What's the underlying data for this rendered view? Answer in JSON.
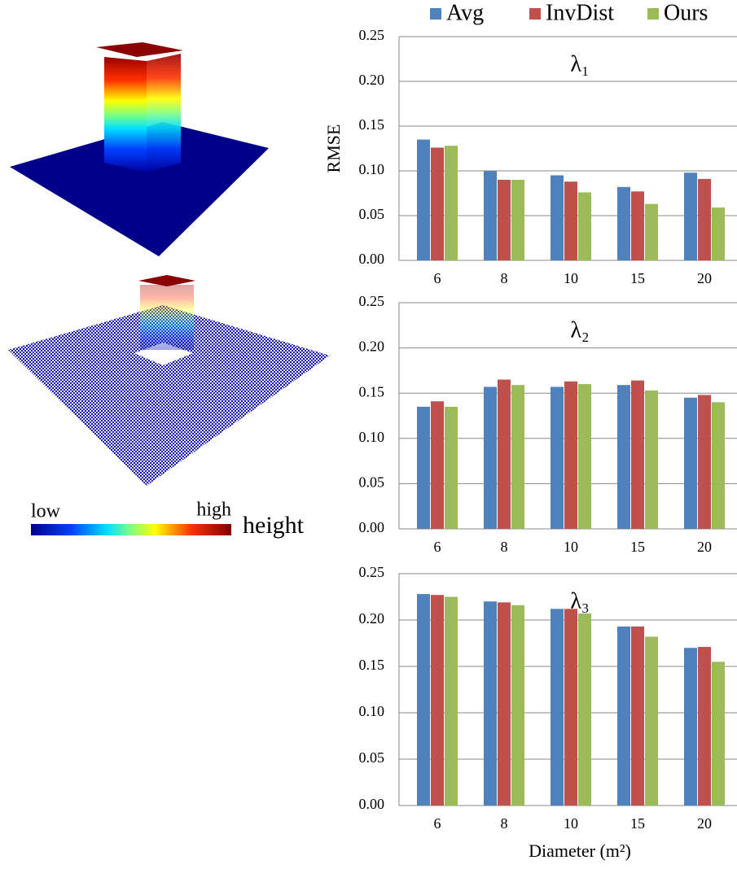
{
  "chart_data": [
    {
      "type": "bar",
      "title": "λ₁",
      "y_label": "RMSE",
      "categories": [
        "6",
        "8",
        "10",
        "15",
        "20"
      ],
      "series": [
        {
          "name": "Avg",
          "color": "#4f81bd",
          "values": [
            0.135,
            0.1,
            0.095,
            0.082,
            0.098
          ]
        },
        {
          "name": "InvDist",
          "color": "#c0504d",
          "values": [
            0.126,
            0.09,
            0.088,
            0.077,
            0.091
          ]
        },
        {
          "name": "Ours",
          "color": "#9bbb59",
          "values": [
            0.128,
            0.09,
            0.076,
            0.063,
            0.059
          ]
        }
      ],
      "ylim": [
        0,
        0.25
      ],
      "yticks": [
        {
          "value": 0,
          "label": "0.00"
        },
        {
          "value": 0.05,
          "label": "0.05"
        },
        {
          "value": 0.1,
          "label": "0.10"
        },
        {
          "value": 0.15,
          "label": "0.15"
        },
        {
          "value": 0.2,
          "label": "0.20"
        },
        {
          "value": 0.25,
          "label": "0.25"
        }
      ],
      "grid": true
    },
    {
      "type": "bar",
      "title": "λ₂",
      "categories": [
        "6",
        "8",
        "10",
        "15",
        "20"
      ],
      "series": [
        {
          "name": "Avg",
          "color": "#4f81bd",
          "values": [
            0.135,
            0.157,
            0.157,
            0.159,
            0.145
          ]
        },
        {
          "name": "InvDist",
          "color": "#c0504d",
          "values": [
            0.141,
            0.165,
            0.163,
            0.164,
            0.148
          ]
        },
        {
          "name": "Ours",
          "color": "#9bbb59",
          "values": [
            0.135,
            0.159,
            0.16,
            0.153,
            0.14
          ]
        }
      ],
      "ylim": [
        0,
        0.25
      ],
      "yticks": [
        {
          "value": 0,
          "label": "0.00"
        },
        {
          "value": 0.05,
          "label": "0.05"
        },
        {
          "value": 0.1,
          "label": "0.10"
        },
        {
          "value": 0.15,
          "label": "0.15"
        },
        {
          "value": 0.2,
          "label": "0.20"
        },
        {
          "value": 0.25,
          "label": "0.25"
        }
      ],
      "grid": true
    },
    {
      "type": "bar",
      "title": "λ₃",
      "x_label": "Diameter (m²)",
      "categories": [
        "6",
        "8",
        "10",
        "15",
        "20"
      ],
      "series": [
        {
          "name": "Avg",
          "color": "#4f81bd",
          "values": [
            0.228,
            0.22,
            0.212,
            0.193,
            0.17
          ]
        },
        {
          "name": "InvDist",
          "color": "#c0504d",
          "values": [
            0.227,
            0.219,
            0.212,
            0.193,
            0.171
          ]
        },
        {
          "name": "Ours",
          "color": "#9bbb59",
          "values": [
            0.225,
            0.216,
            0.207,
            0.182,
            0.155
          ]
        }
      ],
      "ylim": [
        0,
        0.25
      ],
      "yticks": [
        {
          "value": 0,
          "label": "0.00"
        },
        {
          "value": 0.05,
          "label": "0.05"
        },
        {
          "value": 0.1,
          "label": "0.10"
        },
        {
          "value": 0.15,
          "label": "0.15"
        },
        {
          "value": 0.2,
          "label": "0.20"
        },
        {
          "value": 0.25,
          "label": "0.25"
        }
      ],
      "grid": true
    }
  ],
  "colorbar": {
    "low": "low",
    "high": "high",
    "title": "height"
  }
}
